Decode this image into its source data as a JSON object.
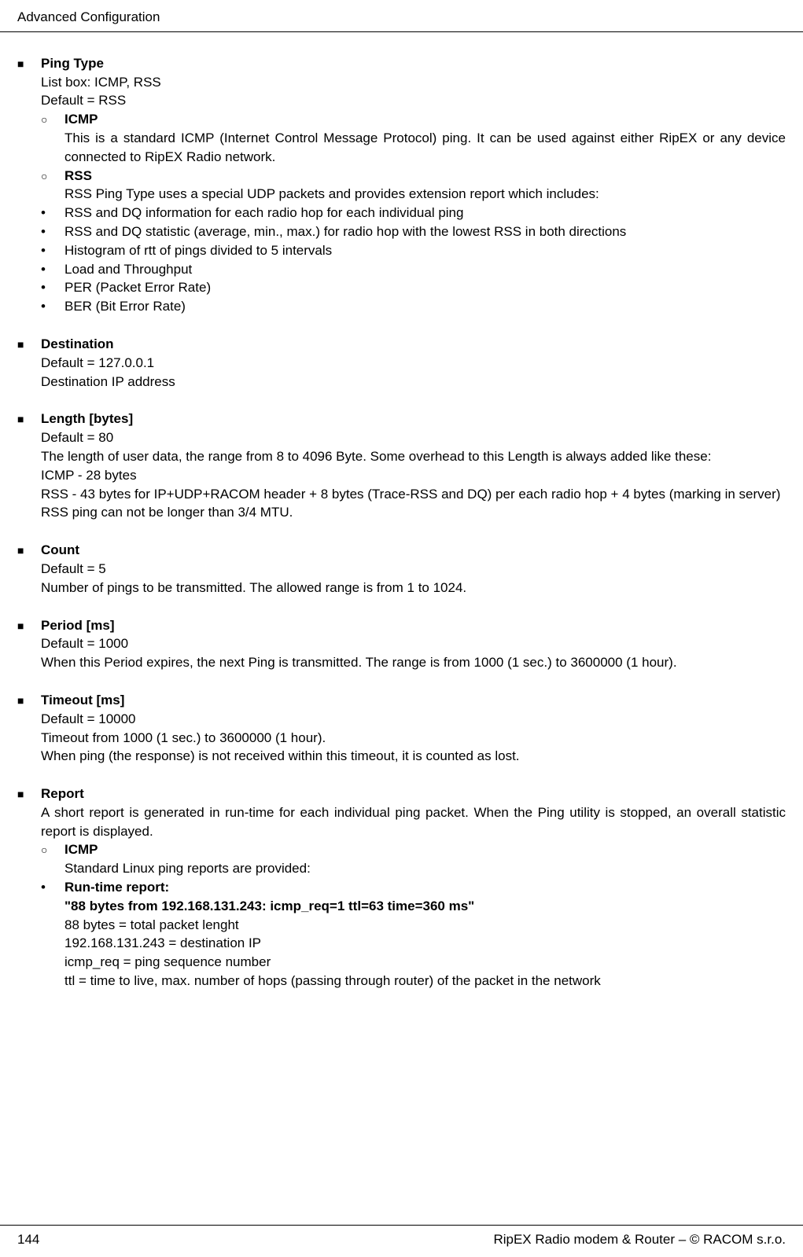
{
  "header": {
    "title": "Advanced Configuration"
  },
  "footer": {
    "page": "144",
    "note": "RipEX Radio modem & Router – © RACOM s.r.o."
  },
  "bullets": {
    "square": "■",
    "circle": "○",
    "dot": "•"
  },
  "sections": [
    {
      "title": "Ping Type",
      "lines": [
        "List box: ICMP, RSS",
        "Default = RSS"
      ],
      "subs": [
        {
          "title": "ICMP",
          "lines": [
            "This is a standard ICMP (Internet Control Message Protocol) ping. It can be used against either RipEX or any device connected to RipEX Radio network."
          ]
        },
        {
          "title": "RSS",
          "lines": [
            "RSS Ping Type uses a special UDP packets and provides extension report which includes:"
          ],
          "items": [
            {
              "text": "RSS and DQ information for each radio hop for each individual ping"
            },
            {
              "text": "RSS and DQ statistic (average, min., max.) for radio hop with the lowest RSS in both directions"
            },
            {
              "text": "Histogram of rtt of pings divided to 5 intervals"
            },
            {
              "text": "Load and Throughput"
            },
            {
              "text": "PER (Packet Error Rate)"
            },
            {
              "text": "BER (Bit Error Rate)"
            }
          ]
        }
      ]
    },
    {
      "title": "Destination",
      "lines": [
        "Default = 127.0.0.1",
        "Destination IP address"
      ]
    },
    {
      "title": "Length [bytes]",
      "lines": [
        "Default = 80",
        "The length of user data, the range from 8 to 4096 Byte. Some overhead to this Length is always added like these:",
        "ICMP - 28 bytes",
        "RSS - 43 bytes for IP+UDP+RACOM header + 8 bytes (Trace-RSS and DQ) per each radio hop + 4 bytes (marking in server)",
        "RSS ping can not be longer than 3/4 MTU."
      ]
    },
    {
      "title": "Count",
      "lines": [
        "Default = 5",
        "Number of pings to be transmitted. The allowed range is from 1 to 1024."
      ]
    },
    {
      "title": "Period [ms]",
      "lines": [
        "Default = 1000",
        "When this Period expires, the next Ping is transmitted. The range is from 1000 (1 sec.) to 3600000 (1 hour)."
      ]
    },
    {
      "title": "Timeout [ms]",
      "lines": [
        "Default = 10000",
        "Timeout from 1000 (1 sec.) to 3600000 (1 hour).",
        "When ping (the response) is not received within this timeout, it is counted as lost."
      ]
    },
    {
      "title": "Report",
      "lines": [
        "A short report is generated in run-time for each individual ping packet. When the Ping utility is stopped, an overall statistic report is displayed."
      ],
      "subs": [
        {
          "title": "ICMP",
          "lines": [
            "Standard Linux ping reports are provided:"
          ],
          "items": [
            {
              "title": "Run-time report:",
              "boldLines": [
                "\"88 bytes from 192.168.131.243: icmp_req=1 ttl=63 time=360 ms\""
              ],
              "plainLines": [
                "88 bytes = total packet lenght",
                "192.168.131.243 = destination IP",
                "icmp_req = ping sequence number",
                "ttl = time to live, max. number of hops (passing through router) of the packet in the network"
              ]
            }
          ]
        }
      ]
    }
  ]
}
